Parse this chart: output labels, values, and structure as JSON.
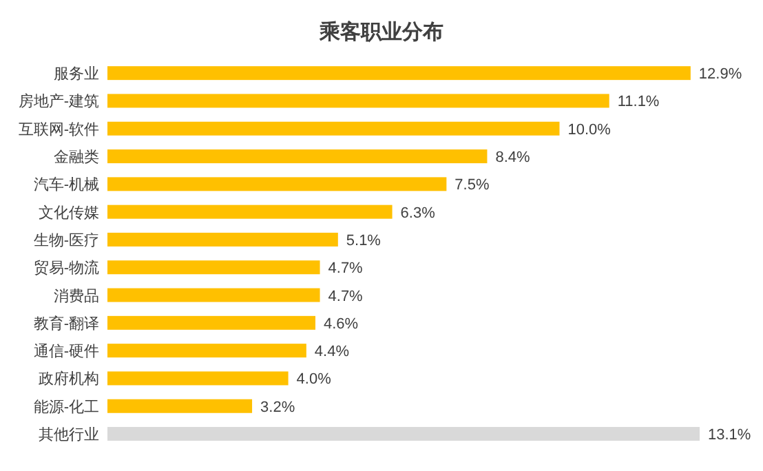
{
  "chart_data": {
    "type": "bar",
    "orientation": "horizontal",
    "title": "乘客职业分布",
    "categories": [
      "服务业",
      "房地产-建筑",
      "互联网-软件",
      "金融类",
      "汽车-机械",
      "文化传媒",
      "生物-医疗",
      "贸易-物流",
      "消费品",
      "教育-翻译",
      "通信-硬件",
      "政府机构",
      "能源-化工",
      "其他行业"
    ],
    "values": [
      12.9,
      11.1,
      10.0,
      8.4,
      7.5,
      6.3,
      5.1,
      4.7,
      4.7,
      4.6,
      4.4,
      4.0,
      3.2,
      13.1
    ],
    "value_labels": [
      "12.9%",
      "11.1%",
      "10.0%",
      "8.4%",
      "7.5%",
      "6.3%",
      "5.1%",
      "4.7%",
      "4.7%",
      "4.6%",
      "4.4%",
      "4.0%",
      "3.2%",
      "13.1%"
    ],
    "colors": [
      "#ffc000",
      "#ffc000",
      "#ffc000",
      "#ffc000",
      "#ffc000",
      "#ffc000",
      "#ffc000",
      "#ffc000",
      "#ffc000",
      "#ffc000",
      "#ffc000",
      "#ffc000",
      "#ffc000",
      "#d9d9d9"
    ]
  }
}
